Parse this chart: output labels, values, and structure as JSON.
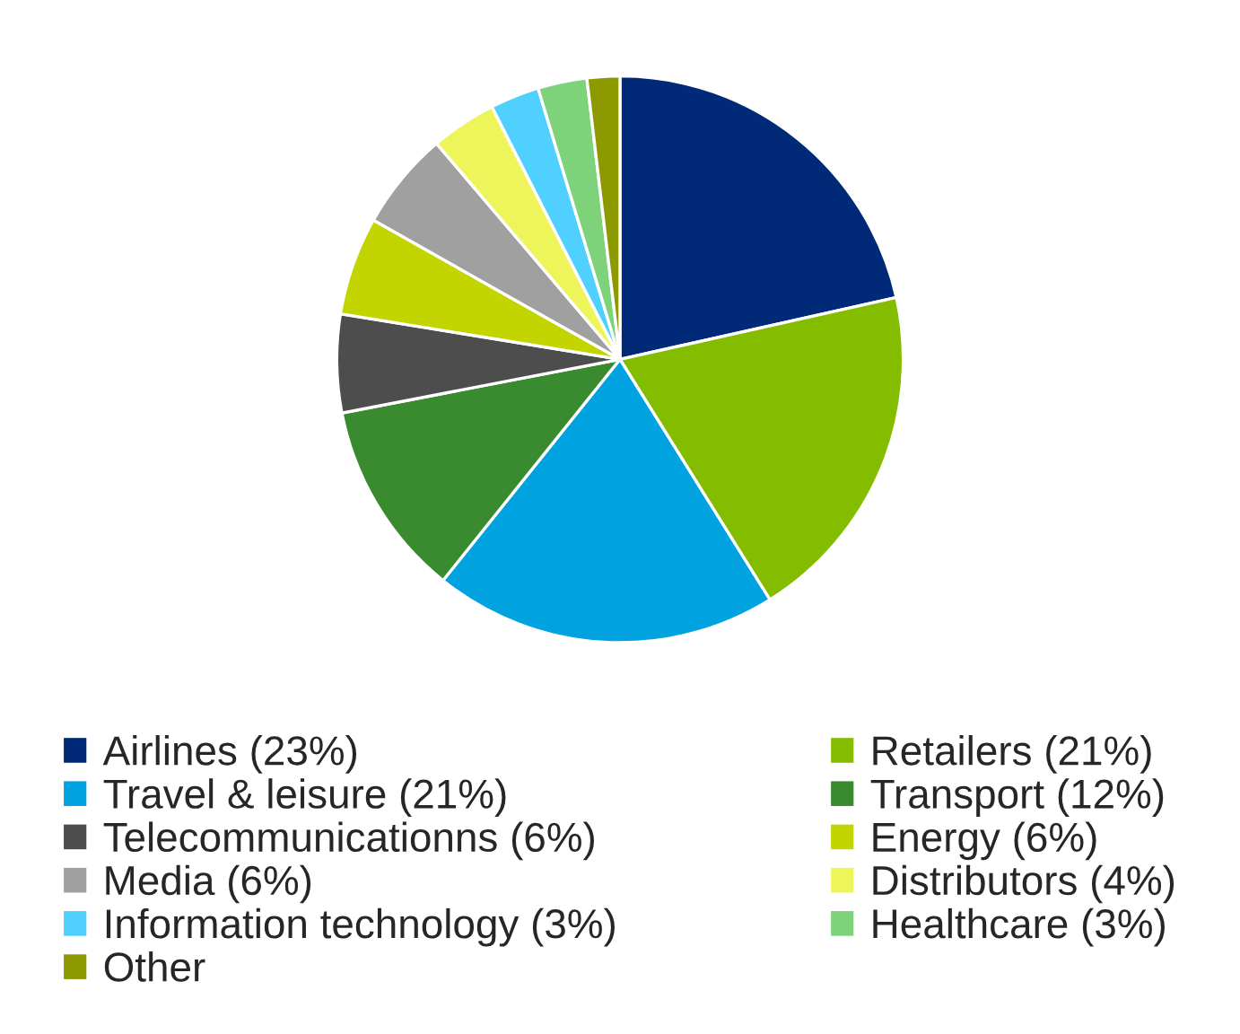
{
  "chart_data": {
    "type": "pie",
    "categories": [
      "Airlines",
      "Retailers",
      "Travel & leisure",
      "Transport",
      "Telecommunicationns",
      "Energy",
      "Media",
      "Distributors",
      "Information technology",
      "Healthcare",
      "Other"
    ],
    "values": [
      23,
      21,
      21,
      12,
      6,
      6,
      6,
      4,
      3,
      3,
      2
    ],
    "value_labels": [
      "(23%)",
      "(21%)",
      "(21%)",
      "(12%)",
      "(6%)",
      "(6%)",
      "(6%)",
      "(4%)",
      "(3%)",
      "(3%)",
      null
    ],
    "colors": [
      "#002a77",
      "#84bd00",
      "#00a3e0",
      "#3a8a2f",
      "#4d4d4d",
      "#c2d500",
      "#a0a0a0",
      "#eef55a",
      "#4fd0ff",
      "#7ed37a",
      "#8c9a00"
    ],
    "legend": "bottom"
  }
}
